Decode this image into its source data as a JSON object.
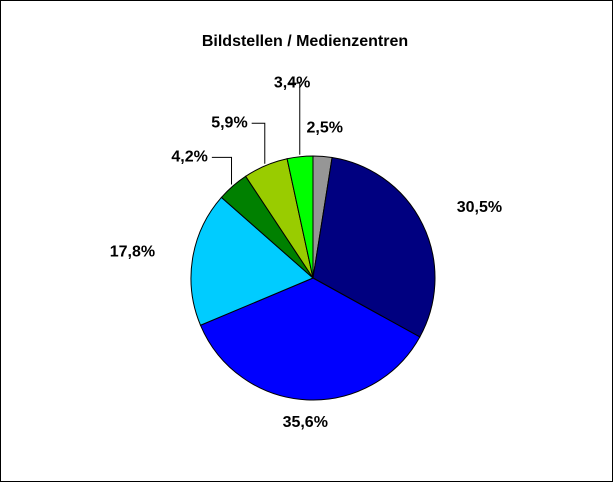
{
  "chart_data": {
    "type": "pie",
    "title": "Bildstellen / Medienzentren",
    "values": [
      2.5,
      30.5,
      35.6,
      17.8,
      4.2,
      5.9,
      3.4
    ],
    "value_labels": [
      "2,5%",
      "30,5%",
      "35,6%",
      "17,8%",
      "4,2%",
      "5,9%",
      "3,4%"
    ],
    "colors": [
      "#969696",
      "#000080",
      "#0000ff",
      "#00ccff",
      "#008000",
      "#99cc00",
      "#00ff00"
    ]
  }
}
